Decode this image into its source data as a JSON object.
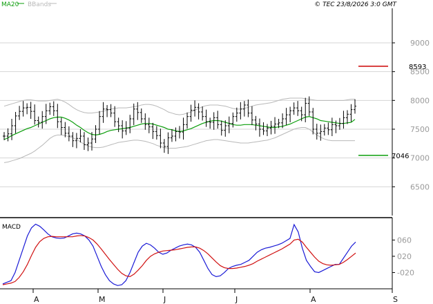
{
  "header": {
    "legend": [
      {
        "name": "MA20",
        "color": "#0b9e0b"
      },
      {
        "name": "BBands",
        "color": "#b8b8b8"
      }
    ],
    "timestamp": "© TEC 23/8/2026 3:0 GMT"
  },
  "colors": {
    "price_bar": "#000000",
    "ma20": "#0b9e0b",
    "bbands": "#b8b8b8",
    "grid": "#d4d4d4",
    "resistance": "#cc0000",
    "support": "#0b9e0b",
    "macd_line": "#1a1ad6",
    "signal_line": "#d01010"
  },
  "chart_data": [
    {
      "type": "ohlc",
      "panel": "price",
      "ylim": [
        6000,
        9600
      ],
      "yticks": [
        6500,
        7000,
        7500,
        8000,
        8500,
        9000
      ],
      "ytick_labels": [
        "6500",
        "7000",
        "7500",
        "8000",
        "8500",
        "9000"
      ],
      "grid": true,
      "levels": [
        {
          "label": "8593",
          "value": 8593,
          "color": "#cc0000"
        },
        {
          "label": "7046",
          "value": 7046,
          "color": "#0b9e0b"
        }
      ],
      "series": [
        {
          "name": "Price",
          "values": [
            7380,
            7420,
            7560,
            7730,
            7810,
            7870,
            7880,
            7810,
            7650,
            7620,
            7720,
            7820,
            7890,
            7820,
            7630,
            7530,
            7430,
            7380,
            7300,
            7340,
            7380,
            7230,
            7260,
            7330,
            7500,
            7720,
            7850,
            7840,
            7780,
            7630,
            7560,
            7470,
            7520,
            7680,
            7850,
            7790,
            7680,
            7580,
            7540,
            7460,
            7390,
            7260,
            7200,
            7350,
            7380,
            7460,
            7450,
            7580,
            7720,
            7830,
            7880,
            7800,
            7720,
            7630,
            7620,
            7700,
            7580,
            7480,
            7560,
            7600,
            7720,
            7780,
            7850,
            7920,
            7780,
            7660,
            7590,
            7500,
            7470,
            7520,
            7550,
            7590,
            7610,
            7680,
            7750,
            7820,
            7870,
            7820,
            7750,
            7950,
            7800,
            7500,
            7430,
            7460,
            7520,
            7490,
            7580,
            7560,
            7600,
            7700,
            7760,
            7840,
            7900
          ]
        },
        {
          "name": "MA20",
          "values": [
            7320,
            7350,
            7390,
            7420,
            7450,
            7480,
            7510,
            7530,
            7560,
            7590,
            7620,
            7650,
            7680,
            7700,
            7710,
            7710,
            7690,
            7660,
            7620,
            7570,
            7530,
            7480,
            7440,
            7410,
            7400,
            7410,
            7430,
            7460,
            7480,
            7490,
            7500,
            7510,
            7520,
            7530,
            7550,
            7570,
            7590,
            7600,
            7600,
            7590,
            7570,
            7550,
            7530,
            7500,
            7490,
            7470,
            7460,
            7470,
            7490,
            7510,
            7540,
            7570,
            7600,
            7620,
            7640,
            7650,
            7650,
            7640,
            7620,
            7600,
            7580,
            7570,
            7570,
            7580,
            7580,
            7580,
            7570,
            7560,
            7550,
            7540,
            7530,
            7530,
            7540,
            7550,
            7570,
            7590,
            7620,
            7650,
            7680,
            7710,
            7720,
            7700,
            7680,
            7650,
            7640,
            7630,
            7620,
            7610,
            7600,
            7600,
            7610,
            7620,
            7670
          ]
        },
        {
          "name": "BB Upper",
          "values": [
            7900,
            7920,
            7940,
            7960,
            7980,
            8000,
            8010,
            8010,
            8000,
            7990,
            7990,
            7990,
            8000,
            8010,
            8020,
            8000,
            7970,
            7930,
            7880,
            7840,
            7810,
            7790,
            7780,
            7780,
            7790,
            7800,
            7810,
            7830,
            7850,
            7860,
            7870,
            7870,
            7870,
            7880,
            7890,
            7900,
            7920,
            7930,
            7930,
            7920,
            7900,
            7870,
            7840,
            7800,
            7780,
            7760,
            7750,
            7760,
            7780,
            7800,
            7830,
            7860,
            7890,
            7910,
            7920,
            7920,
            7920,
            7910,
            7900,
            7880,
            7860,
            7850,
            7850,
            7860,
            7880,
            7900,
            7920,
            7930,
            7940,
            7950,
            7960,
            7980,
            8000,
            8020,
            8030,
            8040,
            8040,
            8040,
            8040,
            8030,
            8020,
            8010,
            8000,
            8000,
            8000,
            8000,
            8000,
            8000,
            8000,
            8000,
            8010,
            8020,
            8020
          ]
        },
        {
          "name": "BB Lower",
          "values": [
            6920,
            6930,
            6950,
            6970,
            6990,
            7020,
            7050,
            7080,
            7120,
            7170,
            7220,
            7280,
            7340,
            7380,
            7400,
            7400,
            7390,
            7370,
            7350,
            7320,
            7280,
            7240,
            7210,
            7190,
            7180,
            7180,
            7190,
            7210,
            7230,
            7250,
            7270,
            7280,
            7290,
            7300,
            7310,
            7310,
            7300,
            7290,
            7270,
            7250,
            7220,
            7200,
            7180,
            7170,
            7170,
            7170,
            7180,
            7190,
            7200,
            7220,
            7240,
            7260,
            7280,
            7300,
            7310,
            7320,
            7320,
            7310,
            7300,
            7290,
            7280,
            7270,
            7260,
            7260,
            7260,
            7270,
            7280,
            7290,
            7300,
            7310,
            7330,
            7350,
            7380,
            7410,
            7440,
            7470,
            7500,
            7520,
            7530,
            7530,
            7500,
            7450,
            7400,
            7360,
            7330,
            7310,
            7300,
            7300,
            7300,
            7300,
            7300,
            7300,
            7300
          ]
        }
      ]
    },
    {
      "type": "line",
      "panel": "macd",
      "title": "MACD",
      "ylim": [
        -60,
        110
      ],
      "yticks": [
        -20,
        20,
        60
      ],
      "ytick_labels": [
        "-020",
        "020",
        "060"
      ],
      "series": [
        {
          "name": "MACD",
          "values": [
            -48,
            -44,
            -40,
            -20,
            10,
            40,
            70,
            90,
            99,
            94,
            85,
            75,
            68,
            65,
            64,
            65,
            70,
            75,
            77,
            75,
            70,
            60,
            45,
            20,
            -5,
            -25,
            -40,
            -48,
            -52,
            -50,
            -40,
            -20,
            5,
            30,
            45,
            52,
            48,
            40,
            30,
            25,
            28,
            35,
            40,
            45,
            48,
            50,
            48,
            42,
            30,
            10,
            -10,
            -25,
            -30,
            -28,
            -20,
            -10,
            -5,
            -2,
            0,
            5,
            10,
            20,
            30,
            36,
            40,
            42,
            45,
            48,
            52,
            58,
            64,
            98,
            80,
            40,
            10,
            -5,
            -18,
            -20,
            -15,
            -10,
            -5,
            0,
            0,
            15,
            30,
            45,
            55
          ]
        },
        {
          "name": "Signal",
          "values": [
            -50,
            -48,
            -46,
            -42,
            -32,
            -18,
            0,
            22,
            42,
            56,
            64,
            68,
            69,
            68,
            68,
            68,
            68,
            68,
            70,
            71,
            70,
            66,
            60,
            50,
            38,
            25,
            12,
            0,
            -12,
            -22,
            -28,
            -30,
            -24,
            -14,
            -3,
            10,
            20,
            26,
            30,
            33,
            34,
            35,
            36,
            38,
            40,
            42,
            43,
            43,
            40,
            34,
            26,
            16,
            6,
            -3,
            -8,
            -10,
            -10,
            -9,
            -7,
            -5,
            -2,
            2,
            8,
            13,
            18,
            23,
            28,
            33,
            38,
            44,
            50,
            60,
            62,
            55,
            42,
            30,
            18,
            8,
            2,
            -1,
            -2,
            -1,
            0,
            5,
            12,
            20,
            28
          ]
        }
      ]
    }
  ],
  "x_axis": {
    "ticks": [
      "A",
      "M",
      "J",
      "J",
      "A",
      "S"
    ]
  }
}
